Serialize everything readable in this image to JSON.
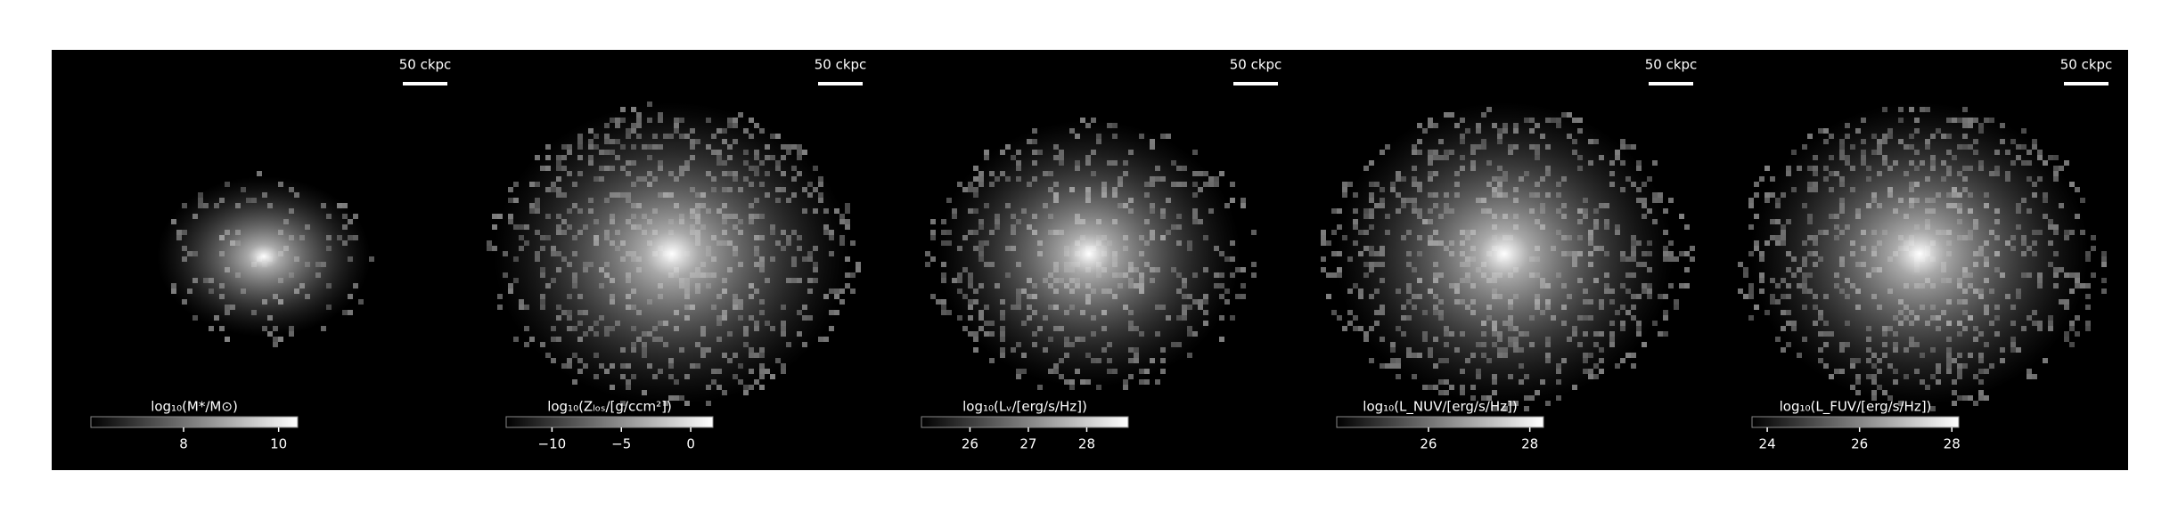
{
  "chart_data": [
    {
      "type": "image",
      "colorbar_label": "log₁₀(M*/M⊙)",
      "scalebar_label": "50 ckpc",
      "clim": [
        6.05,
        10.4
      ],
      "cticks": [
        8,
        10
      ]
    },
    {
      "type": "image",
      "colorbar_label": "log₁₀(Zₗₒₛ/[g/ccm²])",
      "scalebar_label": "50 ckpc",
      "clim": [
        -13.3,
        1.6
      ],
      "cticks": [
        {
          "value": -10,
          "label": "−10"
        },
        {
          "value": -5,
          "label": "−5"
        },
        0
      ]
    },
    {
      "type": "image",
      "colorbar_label": "log₁₀(Lᵥ/[erg/s/Hz])",
      "scalebar_label": "50 ckpc",
      "clim": [
        25.17,
        28.71
      ],
      "cticks": [
        26,
        27,
        28
      ]
    },
    {
      "type": "image",
      "colorbar_label": "log₁₀(L_NUV/[erg/s/Hz])",
      "scalebar_label": "50 ckpc",
      "clim": [
        24.19,
        28.27
      ],
      "cticks": [
        26,
        28
      ]
    },
    {
      "type": "image",
      "colorbar_label": "log₁₀(L_FUV/[erg/s/Hz])",
      "scalebar_label": "50 ckpc",
      "clim": [
        23.67,
        28.15
      ],
      "cticks": [
        24,
        26,
        28
      ]
    }
  ]
}
